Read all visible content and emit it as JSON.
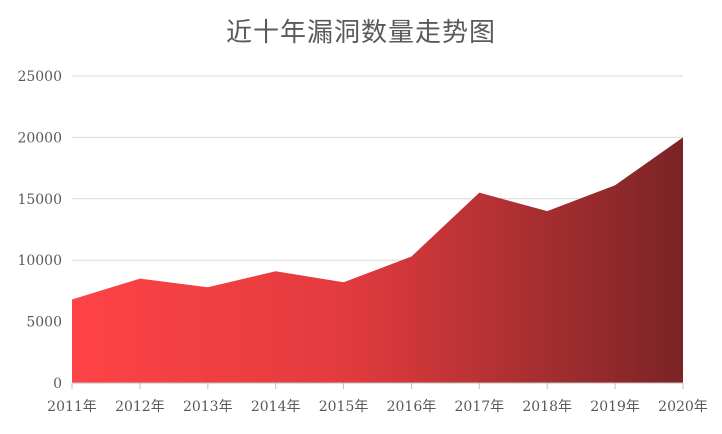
{
  "chart_data": {
    "type": "area",
    "title": "近十年漏洞数量走势图",
    "xlabel": "",
    "ylabel": "",
    "categories": [
      "2011年",
      "2012年",
      "2013年",
      "2014年",
      "2015年",
      "2016年",
      "2017年",
      "2018年",
      "2019年",
      "2020年"
    ],
    "series": [
      {
        "values": [
          6800,
          8500,
          7800,
          9100,
          8200,
          10300,
          15500,
          14000,
          16100,
          20000
        ]
      }
    ],
    "ylim": [
      0,
      25000
    ],
    "yticks": [
      0,
      5000,
      10000,
      15000,
      20000,
      25000
    ],
    "grid": true,
    "legend": "none",
    "colors": {
      "fill_start": "#fe4346",
      "fill_mid": "#e23b3e",
      "fill_end": "#7a2426",
      "grid": "#d9d9d9",
      "axis": "#bfbfbf",
      "text": "#595959"
    }
  }
}
